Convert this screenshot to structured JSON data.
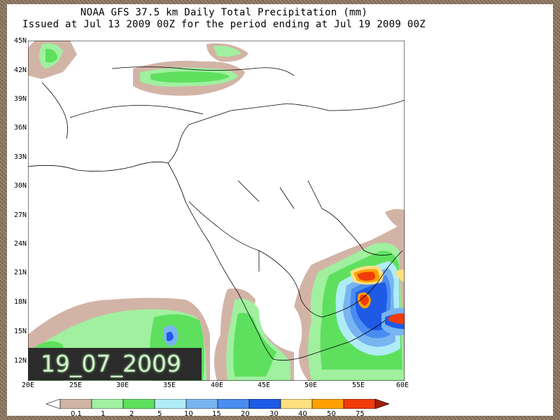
{
  "title": {
    "line1": "NOAA GFS 37.5 km Daily Total Precipitation (mm)",
    "line2": "Issued at Jul 13 2009 00Z for the period ending at Jul 19 2009 00Z"
  },
  "date_stamp": "19_07_2009",
  "map": {
    "region": "Middle East / Arabian Peninsula",
    "lat_labels": [
      "45N",
      "42N",
      "39N",
      "36N",
      "33N",
      "30N",
      "27N",
      "24N",
      "21N",
      "18N",
      "15N",
      "12N"
    ],
    "lon_labels": [
      "20E",
      "25E",
      "30E",
      "35E",
      "40E",
      "45E",
      "50E",
      "55E",
      "60E"
    ]
  },
  "legend": {
    "labels": [
      "0.1",
      "1",
      "2",
      "5",
      "10",
      "15",
      "20",
      "30",
      "40",
      "50",
      "75"
    ],
    "colors": [
      "#ffffff",
      "#d2b4a6",
      "#a0f0a0",
      "#5ee05e",
      "#b0ecf6",
      "#78b4f0",
      "#4a8cf0",
      "#1e5ae6",
      "#ffe080",
      "#ffa000",
      "#f03c0a",
      "#a01e0a"
    ]
  },
  "colors": {
    "frame": "#8a7460",
    "stamp_bg": "#2b2b2b",
    "stamp_text": "#d8ecd0"
  }
}
